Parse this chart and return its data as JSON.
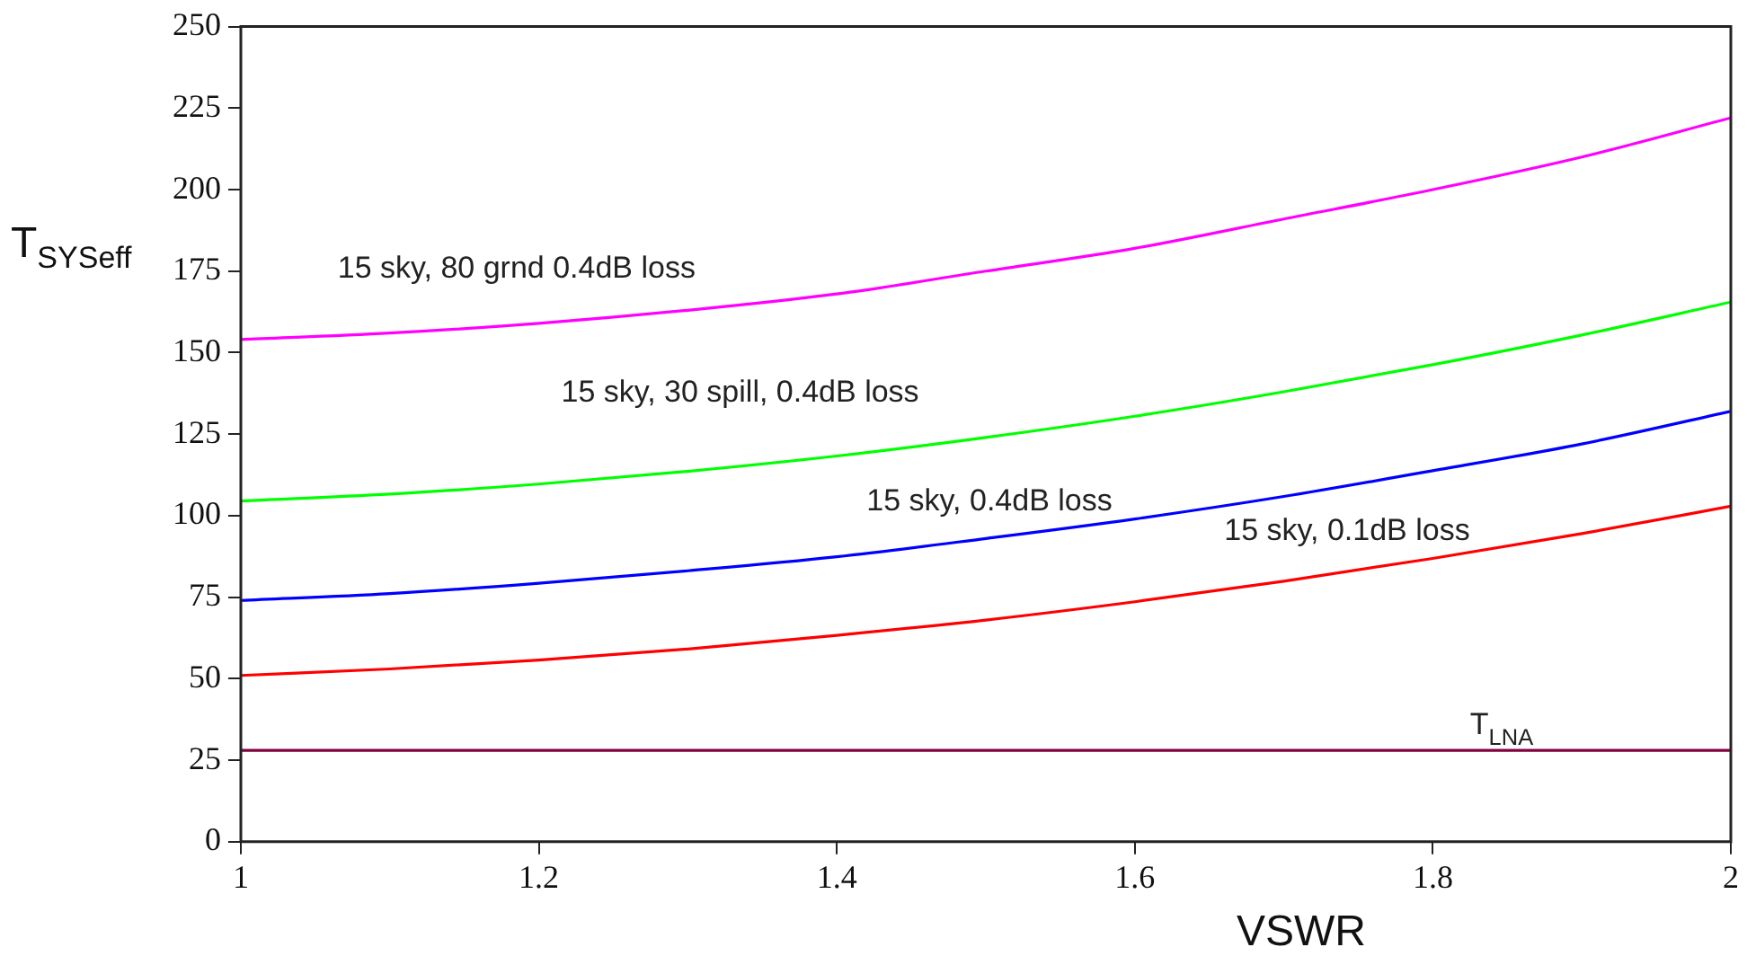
{
  "chart_data": {
    "type": "line",
    "xlabel": "VSWR",
    "ylabel": "T$_{SYSeff}$",
    "x": [
      1,
      1.1,
      1.2,
      1.3,
      1.4,
      1.5,
      1.6,
      1.7,
      1.8,
      1.9,
      2
    ],
    "series": [
      {
        "name": "15 sky, 80 grnd 0.4dB loss",
        "color": "#ff00ff",
        "values": [
          154,
          156,
          159,
          163,
          168,
          175,
          182,
          191,
          200,
          210,
          222
        ]
      },
      {
        "name": "15 sky, 30 spill, 0.4dB loss",
        "color": "#00ff00",
        "values": [
          104.5,
          106.6,
          109.7,
          113.6,
          118.3,
          124,
          130.5,
          138,
          146.3,
          155.4,
          165.5
        ]
      },
      {
        "name": "15 sky, 0.4dB loss",
        "color": "#0000ff",
        "values": [
          74,
          76.1,
          79.3,
          83.1,
          87.4,
          93,
          99,
          105.9,
          113.8,
          122,
          132
        ]
      },
      {
        "name": "15 sky, 0.1dB loss",
        "color": "#ff0000",
        "values": [
          51,
          53,
          55.7,
          59.1,
          63.3,
          68,
          73.6,
          79.9,
          86.9,
          94.5,
          102.9
        ]
      },
      {
        "name": "T$_{LNA}$",
        "color": "#800040",
        "values": [
          28,
          28,
          28,
          28,
          28,
          28,
          28,
          28,
          28,
          28,
          28
        ]
      }
    ],
    "xlim": [
      1,
      2
    ],
    "xticks": [
      1,
      1.2,
      1.4,
      1.6,
      1.8,
      2
    ],
    "ylim": [
      0,
      250
    ],
    "yticks": [
      0,
      25,
      50,
      75,
      100,
      125,
      150,
      175,
      200,
      225,
      250
    ],
    "grid": false,
    "legend": false,
    "marker": "none",
    "line_style": "solid"
  }
}
